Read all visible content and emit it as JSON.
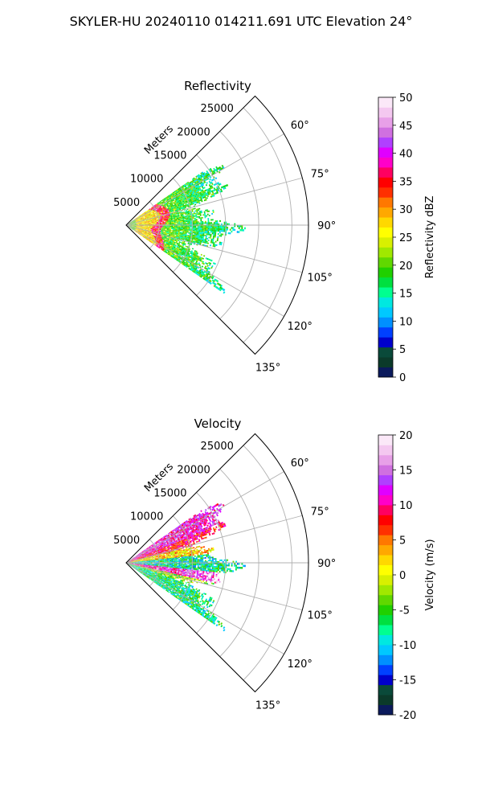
{
  "figure": {
    "suptitle": "SKYLER-HU  20240110  014211.691 UTC Elevation 24°"
  },
  "chart_data": [
    {
      "type": "heatmap",
      "projection": "polar-sector",
      "title": "Reflectivity",
      "radial_label": "Meters",
      "radial_ticks": [
        "5000",
        "10000",
        "15000",
        "20000",
        "25000"
      ],
      "radial_values": [
        5000,
        10000,
        15000,
        20000,
        25000
      ],
      "rlim": [
        0,
        27500
      ],
      "azimuth_ticks": [
        "60°",
        "75°",
        "90°",
        "105°",
        "120°",
        "135°"
      ],
      "azimuth_values": [
        60,
        75,
        90,
        105,
        120,
        135
      ],
      "azimuth_range_deg": [
        45,
        135
      ],
      "data_extent": {
        "azimuth_deg": [
          55,
          125
        ],
        "range_m_min": 0,
        "range_m_max_typical": 14000,
        "pattern": "strong echo ring near 5000 m (30-40 dBZ), weaker 15-25 dBZ beyond to ~14000 m"
      },
      "colorbar": {
        "label": "Reflectivity dBZ",
        "min": 0,
        "max": 50,
        "ticks": [
          "0",
          "5",
          "10",
          "15",
          "20",
          "25",
          "30",
          "35",
          "40",
          "45",
          "50"
        ],
        "tick_values": [
          0,
          5,
          10,
          15,
          20,
          25,
          30,
          35,
          40,
          45,
          50
        ],
        "colors": [
          "#0b1a5c",
          "#0b3a2a",
          "#0a4a3a",
          "#0000cc",
          "#0040ff",
          "#0090ff",
          "#00c8ff",
          "#00e8e0",
          "#00ff90",
          "#00e040",
          "#20d000",
          "#60d800",
          "#a0e800",
          "#d8f000",
          "#ffff00",
          "#ffd800",
          "#ffa800",
          "#ff7800",
          "#ff3000",
          "#ff0000",
          "#ff0060",
          "#ff00c8",
          "#e000ff",
          "#b040ff",
          "#d070e0",
          "#e8a0e8",
          "#f4c8f0",
          "#fbe8f8"
        ]
      },
      "grid": true
    },
    {
      "type": "heatmap",
      "projection": "polar-sector",
      "title": "Velocity",
      "radial_label": "Meters",
      "radial_ticks": [
        "5000",
        "10000",
        "15000",
        "20000",
        "25000"
      ],
      "radial_values": [
        5000,
        10000,
        15000,
        20000,
        25000
      ],
      "rlim": [
        0,
        27500
      ],
      "azimuth_ticks": [
        "60°",
        "75°",
        "90°",
        "105°",
        "120°",
        "135°"
      ],
      "azimuth_values": [
        60,
        75,
        90,
        105,
        120,
        135
      ],
      "azimuth_range_deg": [
        45,
        135
      ],
      "data_extent": {
        "azimuth_deg": [
          55,
          125
        ],
        "range_m_min": 0,
        "range_m_max_typical": 14000,
        "pattern": "receding (+10 m/s) toward 60-75°, approaching (-5 to -12 m/s) near 85-95° and 110-120°, strong +15 m/s streak near 100°"
      },
      "colorbar": {
        "label": "Velocity (m/s)",
        "min": -20,
        "max": 20,
        "ticks": [
          "-20",
          "-15",
          "-10",
          "-5",
          "0",
          "5",
          "10",
          "15",
          "20"
        ],
        "tick_values": [
          -20,
          -15,
          -10,
          -5,
          0,
          5,
          10,
          15,
          20
        ],
        "colors": [
          "#0b1a5c",
          "#0b3a2a",
          "#0a4a3a",
          "#0000cc",
          "#0040ff",
          "#0090ff",
          "#00c8ff",
          "#00e8e0",
          "#00ff90",
          "#00e040",
          "#20d000",
          "#60d800",
          "#a0e800",
          "#d8f000",
          "#ffff00",
          "#ffd800",
          "#ffa800",
          "#ff7800",
          "#ff3000",
          "#ff0000",
          "#ff0060",
          "#ff00c8",
          "#e000ff",
          "#b040ff",
          "#d070e0",
          "#e8a0e8",
          "#f4c8f0",
          "#fbe8f8"
        ]
      },
      "grid": true
    }
  ]
}
